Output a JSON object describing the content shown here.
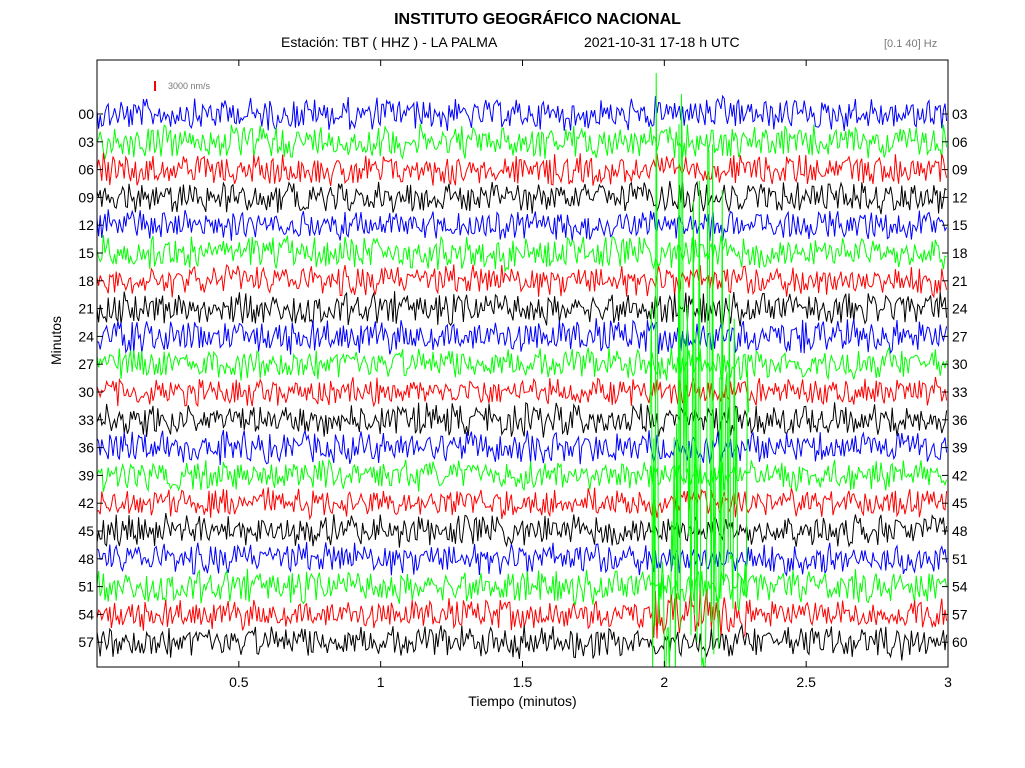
{
  "header": {
    "title": "INSTITUTO GEOGRÁFICO NACIONAL",
    "station_line": "Estación:  TBT ( HHZ ) - LA PALMA",
    "date_line": "2021-10-31  17-18 h UTC",
    "filter_band": "[0.1 40] Hz"
  },
  "scale_bar": {
    "label": "3000 nm/s",
    "color": "#ff0000"
  },
  "chart_data": {
    "type": "line",
    "title": "INSTITUTO GEOGRÁFICO NACIONAL",
    "xlabel": "Tiempo (minutos)",
    "ylabel": "Minutos",
    "xlim": [
      0,
      3
    ],
    "x_ticks": [
      "0.5",
      "1",
      "1.5",
      "2",
      "2.5",
      "3"
    ],
    "x_tick_values": [
      0.5,
      1,
      1.5,
      2,
      2.5,
      3
    ],
    "left_tick_labels": [
      "00",
      "03",
      "06",
      "09",
      "12",
      "15",
      "18",
      "21",
      "24",
      "27",
      "30",
      "33",
      "36",
      "39",
      "42",
      "45",
      "48",
      "51",
      "54",
      "57"
    ],
    "right_tick_labels": [
      "03",
      "06",
      "09",
      "12",
      "15",
      "18",
      "21",
      "24",
      "27",
      "30",
      "33",
      "36",
      "39",
      "42",
      "45",
      "48",
      "51",
      "54",
      "57",
      "60"
    ],
    "trace_colors": [
      "#0000ff",
      "#00ff00",
      "#ff0000",
      "#000000"
    ],
    "grid": false,
    "annotations": [
      {
        "type": "event",
        "description": "large-amplitude burst on a green trace saturating the plot",
        "x_start": 1.95,
        "x_peak_end": 2.15,
        "x_end": 2.3
      }
    ]
  }
}
